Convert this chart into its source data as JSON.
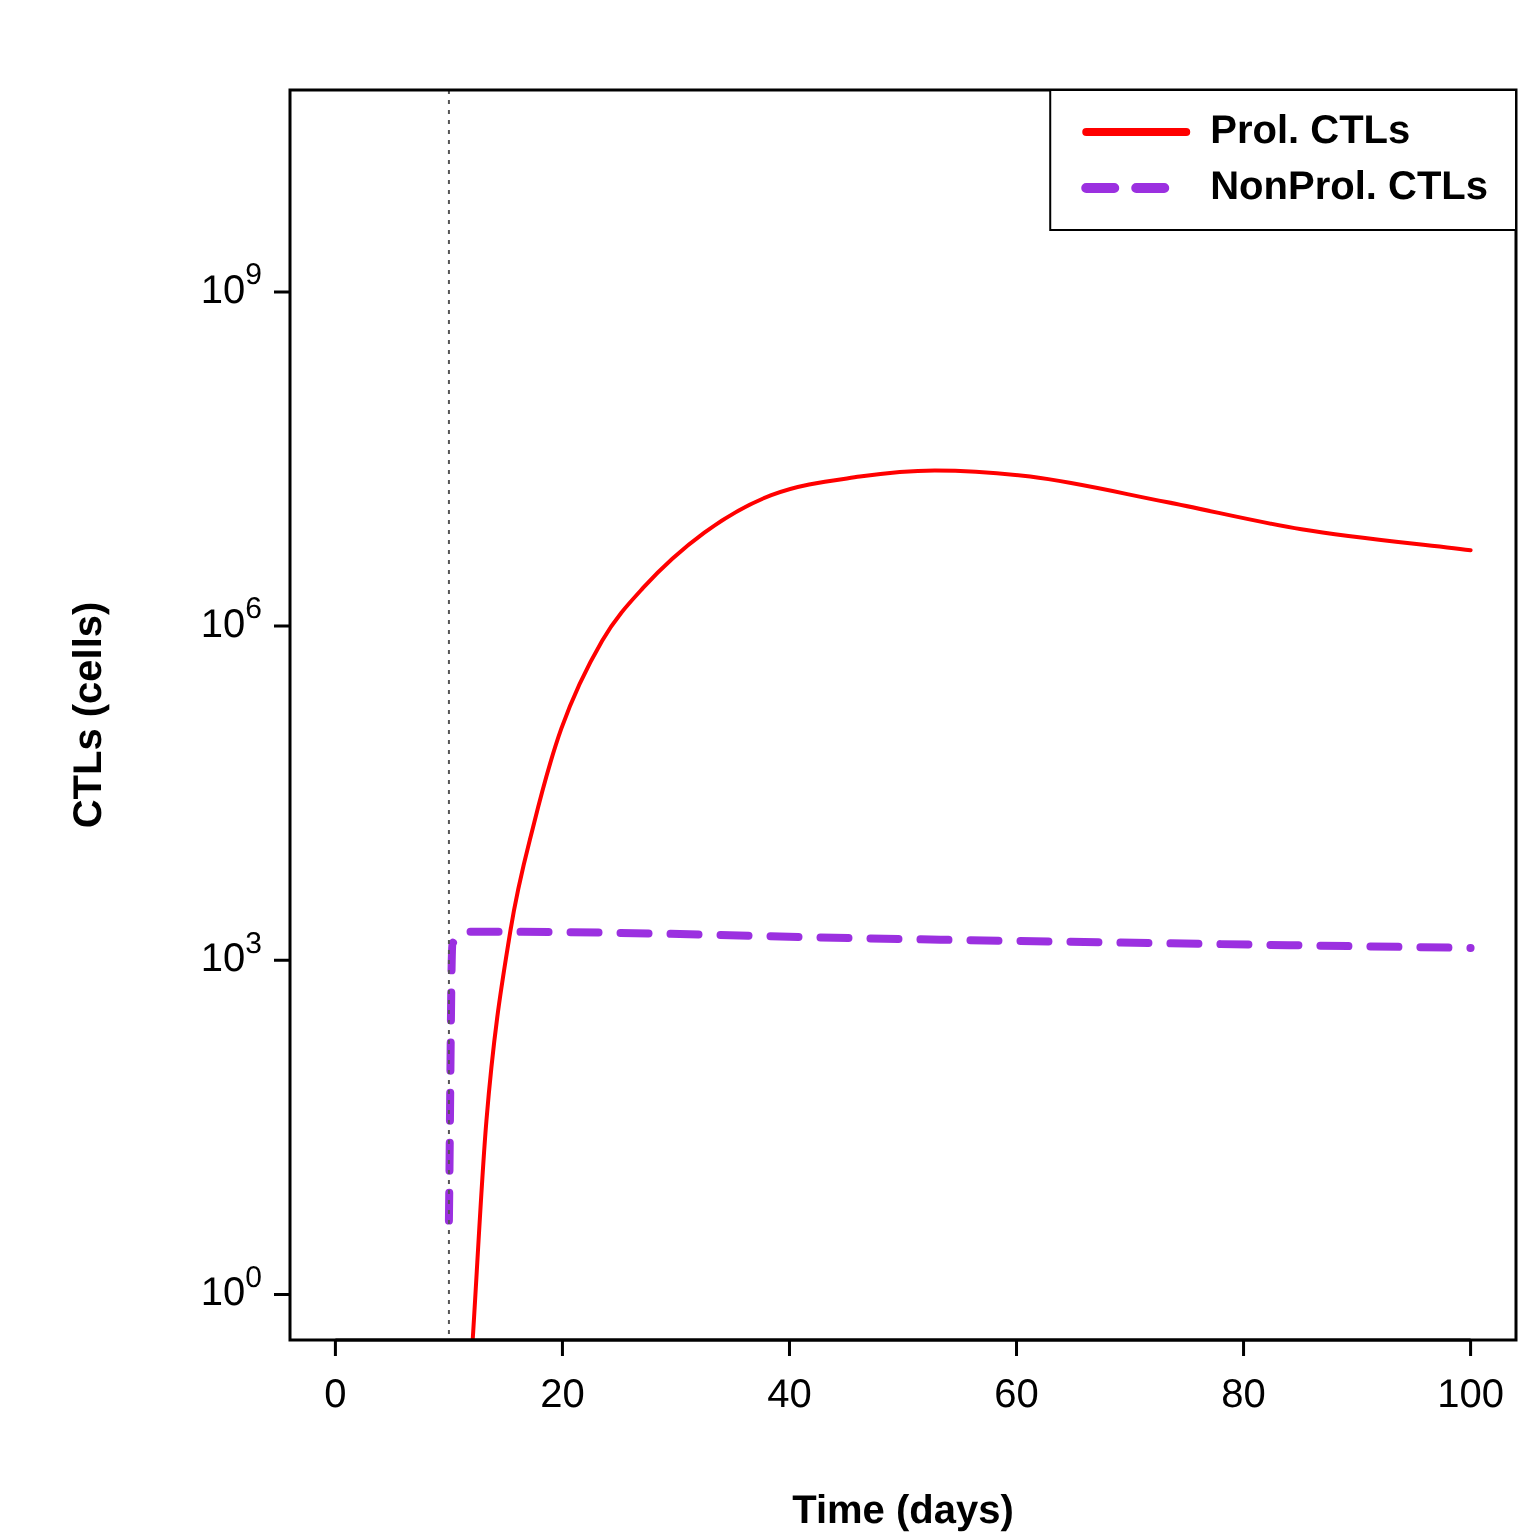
{
  "chart_data": {
    "type": "line",
    "xlabel": "Time (days)",
    "ylabel": "CTLs (cells)",
    "log": "y",
    "xlim": [
      -4,
      104
    ],
    "ylim": [
      0.39,
      65000000000
    ],
    "xticks": [
      0,
      20,
      40,
      60,
      80,
      100
    ],
    "yticks": [
      {
        "value": 1,
        "label": "10$^{0}$"
      },
      {
        "value": 1000,
        "label": "10$^{3}$"
      },
      {
        "value": 1000000,
        "label": "10$^{6}$"
      },
      {
        "value": 1000000000,
        "label": "10$^{9}$"
      }
    ],
    "grid": false,
    "legend": "top right",
    "marker": "none",
    "ref_lines": [
      {
        "axis": "x",
        "value": 10,
        "color": "#555555",
        "line_style": "dotted"
      }
    ],
    "series": [
      {
        "name": "Prol. CTLs",
        "color": "#ff0000",
        "line_style": "solid",
        "x": [
          12.1,
          13.3,
          15.4,
          17.5,
          19.9,
          23.5,
          27.1,
          32.5,
          38.4,
          46.2,
          52.8,
          61.2,
          73.2,
          85.1,
          100
        ],
        "values": [
          0.4,
          36,
          1800,
          17000,
          120000,
          740000,
          2200000,
          6900000,
          15000000,
          22000000,
          25000000,
          22000000,
          13000000,
          7400000,
          4800000
        ]
      },
      {
        "name": "NonProl. CTLs",
        "color": "#9b30e0",
        "line_style": "dashed",
        "x": [
          10,
          10.3,
          12,
          15,
          50,
          100
        ],
        "values": [
          4.6,
          1400,
          1800,
          1800,
          1550,
          1290
        ]
      }
    ]
  }
}
